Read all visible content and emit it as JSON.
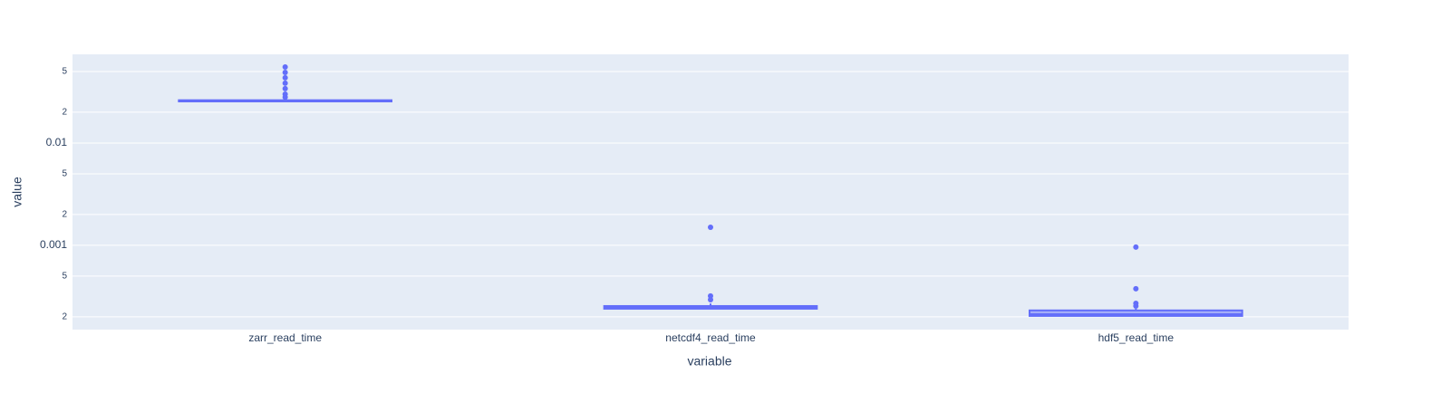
{
  "chart_data": {
    "type": "box",
    "x_label": "variable",
    "y_label": "value",
    "log_y": true,
    "grid": true,
    "color": "#636efa",
    "categories": [
      "zarr_read_time",
      "netcdf4_read_time",
      "hdf5_read_time"
    ],
    "boxes": [
      {
        "lowerfence": 0.0252,
        "q1": 0.0255,
        "median": 0.0258,
        "q3": 0.0262,
        "upperfence": 0.0268,
        "outliers": [
          0.0553,
          0.049,
          0.0434,
          0.0384,
          0.034,
          0.03,
          0.028
        ]
      },
      {
        "lowerfence": 0.000238,
        "q1": 0.00024,
        "median": 0.000248,
        "q3": 0.000255,
        "upperfence": 0.00027,
        "outliers": [
          0.0015,
          0.00032,
          0.000294
        ]
      },
      {
        "lowerfence": 0.000203,
        "q1": 0.000204,
        "median": 0.000212,
        "q3": 0.000231,
        "upperfence": 0.00024,
        "outliers": [
          0.00096,
          0.000376,
          0.000271,
          0.000255
        ]
      }
    ],
    "ylim": [
      0.00015,
      0.0736
    ],
    "yticks": [
      {
        "value": 0.05,
        "label": "5"
      },
      {
        "value": 0.02,
        "label": "2"
      },
      0.01,
      {
        "value": 0.005,
        "label": "5"
      },
      {
        "value": 0.002,
        "label": "2"
      },
      0.001,
      {
        "value": 0.0005,
        "label": "5"
      },
      {
        "value": 0.0002,
        "label": "2"
      }
    ]
  }
}
